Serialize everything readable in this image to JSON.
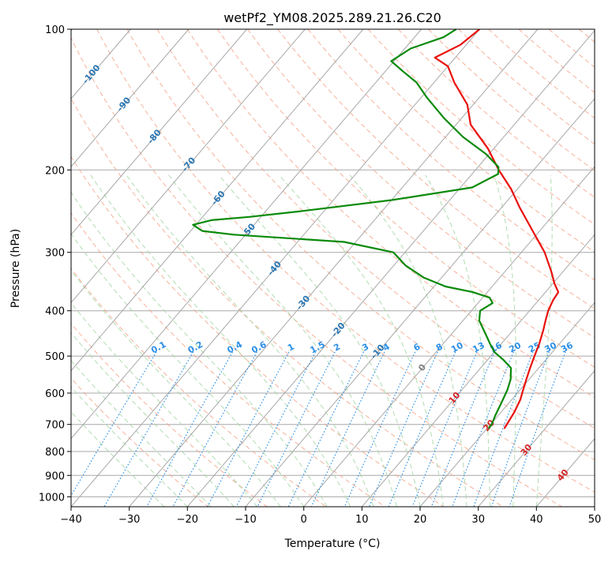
{
  "chart_data": {
    "type": "line",
    "subtype": "skew-t log-p diagram",
    "title": "wetPf2_YM08.2025.289.21.26.C20",
    "xlabel": "Temperature (°C)",
    "ylabel": "Pressure (hPa)",
    "xlim": [
      -40,
      50
    ],
    "ylim": [
      1050,
      100
    ],
    "y_scale": "log",
    "x_ticks": [
      -40,
      -30,
      -20,
      -10,
      0,
      10,
      20,
      30,
      40,
      50
    ],
    "y_ticks": [
      100,
      200,
      300,
      400,
      500,
      600,
      700,
      800,
      900,
      1000
    ],
    "grid": true,
    "colors": {
      "temperature": "#e8100c",
      "dewpoint": "#0a8a0a",
      "isotherm": "#a8a8a8",
      "dry_adiabat": "#f4a58a",
      "moist_adiabat": "#a8d8a8",
      "mixing_ratio": "#2b8fe6",
      "isotherm_label": "#2a77b4",
      "hot_isotherm_label": "#d62728",
      "zero_label": "#808080"
    },
    "series": [
      {
        "name": "temperature",
        "p": [
          715,
          700,
          660,
          620,
          590,
          560,
          530,
          500,
          470,
          440,
          420,
          400,
          380,
          365,
          350,
          330,
          300,
          270,
          240,
          220,
          200,
          180,
          160,
          145,
          130,
          120,
          115,
          108,
          100
        ],
        "t": [
          23,
          22.8,
          22.3,
          21.5,
          20.5,
          19.5,
          18.5,
          17.5,
          16.5,
          15.2,
          14.2,
          13.2,
          12.5,
          12.2,
          10.3,
          8.0,
          4.0,
          -1.2,
          -7.0,
          -11.0,
          -16.0,
          -21.0,
          -27.5,
          -31.0,
          -36.5,
          -40.0,
          -43.5,
          -41.0,
          -40.0
        ]
      },
      {
        "name": "dewpoint",
        "p": [
          715,
          700,
          670,
          620,
          590,
          560,
          530,
          510,
          490,
          470,
          450,
          420,
          400,
          385,
          375,
          365,
          355,
          340,
          320,
          300,
          285,
          275,
          270,
          262,
          256,
          252,
          245,
          232,
          218,
          204,
          197,
          185,
          170,
          155,
          140,
          130,
          123,
          117,
          110,
          104,
          100
        ],
        "td": [
          20.3,
          20.2,
          19.5,
          18.5,
          17.8,
          16.8,
          15.2,
          12.8,
          10.0,
          8.0,
          6.0,
          2.8,
          1.5,
          2.5,
          1.2,
          -2.5,
          -8.0,
          -13.0,
          -18.0,
          -22.0,
          -32.0,
          -52.0,
          -58.0,
          -60.5,
          -58.0,
          -52.0,
          -44.0,
          -30.0,
          -18.0,
          -15.5,
          -16.5,
          -20.5,
          -27.0,
          -33.0,
          -39.0,
          -43.0,
          -47.0,
          -50.5,
          -49.0,
          -45.0,
          -44.0
        ]
      }
    ],
    "isotherm_labels": [
      -100,
      -90,
      -80,
      -70,
      -60,
      -50,
      -40,
      -30,
      -20,
      -10,
      0,
      10,
      20,
      30,
      40
    ],
    "mixing_ratio_labels": [
      "0.1",
      "0.2",
      "0.4",
      "0.6",
      "1",
      "1.5",
      "2",
      "3",
      "4",
      "6",
      "8",
      "10",
      "13",
      "16",
      "20",
      "25",
      "30",
      "36"
    ]
  }
}
